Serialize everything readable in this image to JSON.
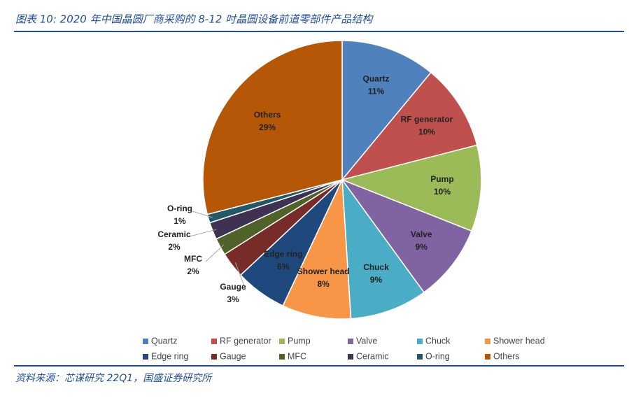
{
  "title": "图表 10: 2020 年中国晶圆厂商采购的 8-12 吋晶圆设备前道零部件产品结构",
  "source": "资料来源：芯谋研究 22Q1，国盛证券研究所",
  "chart_data": {
    "type": "pie",
    "categories": [
      "Quartz",
      "RF generator",
      "Pump",
      "Valve",
      "Chuck",
      "Shower head",
      "Edge ring",
      "Gauge",
      "MFC",
      "Ceramic",
      "O-ring",
      "Others"
    ],
    "values": [
      11,
      10,
      10,
      9,
      9,
      8,
      6,
      3,
      2,
      2,
      1,
      29
    ],
    "value_labels": [
      "11%",
      "10%",
      "10%",
      "9%",
      "9%",
      "8%",
      "6%",
      "3%",
      "2%",
      "2%",
      "1%",
      "29%"
    ],
    "colors": [
      "#4f81bd",
      "#c0504d",
      "#9bbb59",
      "#8064a2",
      "#4bacc6",
      "#f79646",
      "#1f497d",
      "#772c2a",
      "#4f6228",
      "#3f3151",
      "#215968",
      "#b65708"
    ],
    "legend": "bottom"
  }
}
